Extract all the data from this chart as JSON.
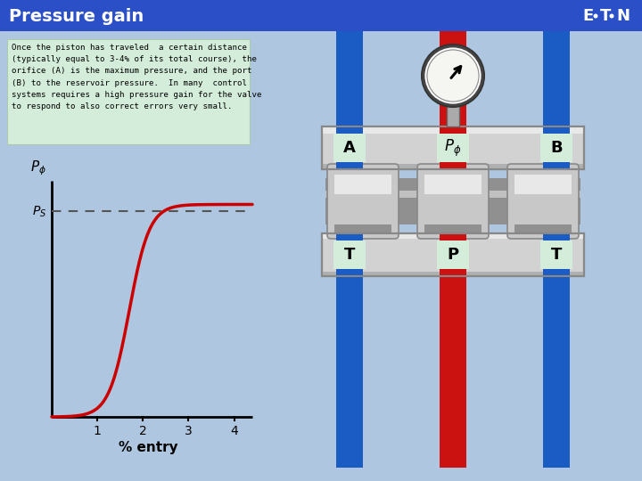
{
  "title": "Pressure gain",
  "title_bg": "#2b4fc7",
  "title_fg": "#ffffff",
  "bg_color": "#aec6e0",
  "text_box_bg": "#d4edda",
  "text_content": "Once the piston has traveled  a certain distance\n(typically equal to 3-4% of its total course), the\norifice (A) is the maximum pressure, and the port\n(B) to the reservoir pressure.  In many  control\nsystems requires a high pressure gain for the valve\nto respond to also correct errors very small.",
  "curve_color": "#cc0000",
  "dashed_color": "#555555",
  "xlabel": "% entry",
  "xticks": [
    1,
    2,
    3,
    4
  ],
  "blue_col": "#1a5bc4",
  "red_col": "#cc1111",
  "gray_light": "#d2d2d2",
  "gray_mid": "#b0b0b0",
  "gray_dark": "#888888",
  "gray_spool": "#a8a8a8",
  "label_bg": "#d4edda",
  "gauge_bg": "#f0f0ee",
  "eaton_bg": "#2b4fc7"
}
